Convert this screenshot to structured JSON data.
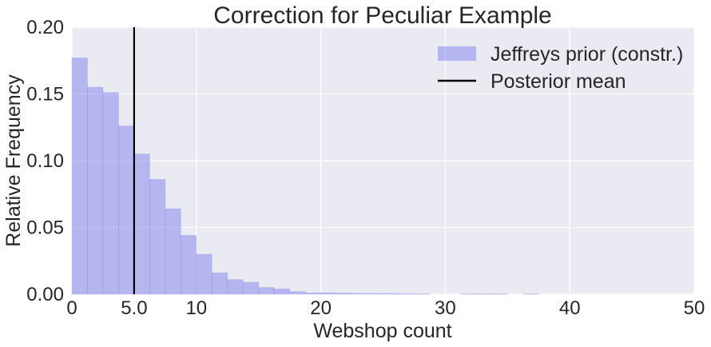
{
  "chart_data": {
    "type": "bar",
    "title": "Correction for Peculiar Example",
    "xlabel": "Webshop count",
    "ylabel": "Relative Frequency",
    "xlim": [
      0,
      50
    ],
    "ylim": [
      0,
      0.2
    ],
    "x_ticks": [
      {
        "value": 0,
        "label": "0"
      },
      {
        "value": 5,
        "label": "5.0"
      },
      {
        "value": 10,
        "label": "10"
      },
      {
        "value": 20,
        "label": "20"
      },
      {
        "value": 30,
        "label": "30"
      },
      {
        "value": 40,
        "label": "40"
      },
      {
        "value": 50,
        "label": "50"
      }
    ],
    "y_ticks": [
      {
        "value": 0,
        "label": "0.00"
      },
      {
        "value": 0.05,
        "label": "0.05"
      },
      {
        "value": 0.1,
        "label": "0.10"
      },
      {
        "value": 0.15,
        "label": "0.15"
      },
      {
        "value": 0.2,
        "label": "0.20"
      }
    ],
    "grid": true,
    "legend_position": "top-right",
    "series": [
      {
        "name": "Jeffreys prior (constr.)",
        "kind": "histogram",
        "color": "#8080ee",
        "bins": [
          {
            "x0": 0.0,
            "x1": 1.25,
            "y": 0.177
          },
          {
            "x0": 1.25,
            "x1": 2.5,
            "y": 0.155
          },
          {
            "x0": 2.5,
            "x1": 3.75,
            "y": 0.151
          },
          {
            "x0": 3.75,
            "x1": 5.0,
            "y": 0.126
          },
          {
            "x0": 5.0,
            "x1": 6.25,
            "y": 0.105
          },
          {
            "x0": 6.25,
            "x1": 7.5,
            "y": 0.086
          },
          {
            "x0": 7.5,
            "x1": 8.75,
            "y": 0.064
          },
          {
            "x0": 8.75,
            "x1": 10.0,
            "y": 0.044
          },
          {
            "x0": 10.0,
            "x1": 11.25,
            "y": 0.03
          },
          {
            "x0": 11.25,
            "x1": 12.5,
            "y": 0.016
          },
          {
            "x0": 12.5,
            "x1": 13.75,
            "y": 0.011
          },
          {
            "x0": 13.75,
            "x1": 15.0,
            "y": 0.009
          },
          {
            "x0": 15.0,
            "x1": 16.25,
            "y": 0.005
          },
          {
            "x0": 16.25,
            "x1": 17.5,
            "y": 0.004
          },
          {
            "x0": 17.5,
            "x1": 18.75,
            "y": 0.002
          },
          {
            "x0": 18.75,
            "x1": 20.0,
            "y": 0.001
          },
          {
            "x0": 20.0,
            "x1": 21.25,
            "y": 0.001
          },
          {
            "x0": 21.25,
            "x1": 22.5,
            "y": 0.0008
          },
          {
            "x0": 22.5,
            "x1": 23.75,
            "y": 0.0006
          },
          {
            "x0": 23.75,
            "x1": 25.0,
            "y": 0.0005
          },
          {
            "x0": 25.0,
            "x1": 26.25,
            "y": 0.0005
          },
          {
            "x0": 26.25,
            "x1": 27.5,
            "y": 0.0004
          },
          {
            "x0": 27.5,
            "x1": 28.75,
            "y": 0.0003
          },
          {
            "x0": 31.25,
            "x1": 32.5,
            "y": 0.0003
          },
          {
            "x0": 32.5,
            "x1": 33.75,
            "y": 0.0003
          },
          {
            "x0": 33.75,
            "x1": 35.0,
            "y": 0.0003
          },
          {
            "x0": 36.25,
            "x1": 37.5,
            "y": 0.0003
          }
        ]
      },
      {
        "name": "Posterior mean",
        "kind": "vline",
        "x": 5.0,
        "color": "#000000"
      }
    ]
  }
}
